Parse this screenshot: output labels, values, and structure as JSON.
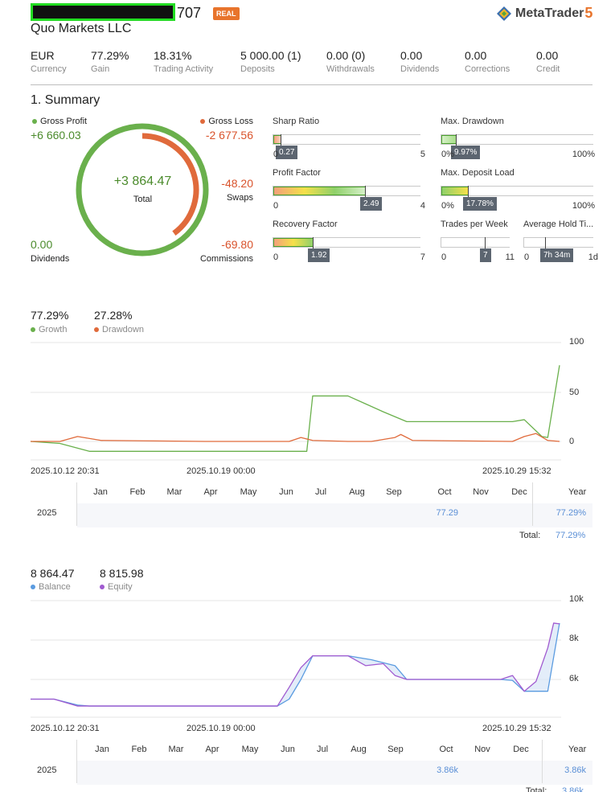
{
  "header": {
    "account_suffix": "707",
    "badge": "REAL",
    "broker": "Quo Markets LLC",
    "logo_text": "MetaTrader",
    "logo_number": "5"
  },
  "stats": [
    {
      "value": "EUR",
      "label": "Currency"
    },
    {
      "value": "77.29%",
      "label": "Gain"
    },
    {
      "value": "18.31%",
      "label": "Trading Activity"
    },
    {
      "value": "5 000.00 (1)",
      "label": "Deposits"
    },
    {
      "value": "0.00 (0)",
      "label": "Withdrawals"
    },
    {
      "value": "0.00",
      "label": "Dividends"
    },
    {
      "value": "0.00",
      "label": "Corrections"
    },
    {
      "value": "0.00",
      "label": "Credit"
    }
  ],
  "summary": {
    "title": "1. Summary",
    "gross_profit_label": "Gross Profit",
    "gross_profit": "+6 660.03",
    "gross_loss_label": "Gross Loss",
    "gross_loss": "-2 677.56",
    "total_value": "+3 864.47",
    "total_label": "Total",
    "swaps_value": "-48.20",
    "swaps_label": "Swaps",
    "dividends_value": "0.00",
    "dividends_label": "Dividends",
    "commissions_value": "-69.80",
    "commissions_label": "Commissions",
    "loss_share": 0.4
  },
  "metrics": {
    "sharp": {
      "label": "Sharp Ratio",
      "min": "0",
      "max": "5",
      "value": "0.27",
      "fraction": 0.054
    },
    "profit_factor": {
      "label": "Profit Factor",
      "min": "0",
      "max": "4",
      "value": "2.49",
      "fraction": 0.6225
    },
    "recovery": {
      "label": "Recovery Factor",
      "min": "0",
      "max": "7",
      "value": "1.92",
      "fraction": 0.274
    },
    "drawdown": {
      "label": "Max. Drawdown",
      "min": "0%",
      "max": "100%",
      "value": "9.97%",
      "fraction": 0.0997
    },
    "deposit_load": {
      "label": "Max. Deposit Load",
      "min": "0%",
      "max": "100%",
      "value": "17.78%",
      "fraction": 0.1778
    },
    "trades_week": {
      "label": "Trades per Week",
      "min": "0",
      "max": "11",
      "value": "7",
      "fraction": 0.636
    },
    "hold_time": {
      "label": "Average Hold Ti...",
      "min": "0",
      "max": "1d",
      "value": "7h 34m",
      "fraction": 0.315
    }
  },
  "growth_chart": {
    "growth_value": "77.29%",
    "growth_label": "Growth",
    "drawdown_value": "27.28%",
    "drawdown_label": "Drawdown",
    "y_ticks": [
      "100",
      "50",
      "0"
    ],
    "x_labels": [
      "2025.10.12 20:31",
      "2025.10.19 00:00",
      "2025.10.29 15:32"
    ],
    "months": [
      "Jan",
      "Feb",
      "Mar",
      "Apr",
      "May",
      "Jun",
      "Jul",
      "Aug",
      "Sep",
      "Oct",
      "Nov",
      "Dec"
    ],
    "year_header": "Year",
    "row_year": "2025",
    "oct_value": "77.29",
    "year_value": "77.29%",
    "total_label": "Total:",
    "total_value": "77.29%",
    "colors": {
      "growth": "#6ab04c",
      "drawdown": "#e06a3b"
    }
  },
  "balance_chart": {
    "balance_value": "8 864.47",
    "balance_label": "Balance",
    "equity_value": "8 815.98",
    "equity_label": "Equity",
    "y_ticks": [
      "10k",
      "8k",
      "6k"
    ],
    "x_labels": [
      "2025.10.12 20:31",
      "2025.10.19 00:00",
      "2025.10.29 15:32"
    ],
    "months": [
      "Jan",
      "Feb",
      "Mar",
      "Apr",
      "May",
      "Jun",
      "Jul",
      "Aug",
      "Sep",
      "Oct",
      "Nov",
      "Dec"
    ],
    "year_header": "Year",
    "row_year": "2025",
    "oct_value": "3.86k",
    "year_value": "3.86k",
    "total_label": "Total:",
    "total_value": "3.86k",
    "colors": {
      "balance": "#5a9be0",
      "equity": "#a05ad0"
    }
  },
  "chart_data": [
    {
      "type": "line",
      "series": [
        {
          "name": "Growth",
          "x": [
            0,
            5,
            10,
            30,
            47,
            48,
            54,
            57,
            60,
            64,
            66,
            82,
            84,
            87,
            88,
            90
          ],
          "y": [
            0,
            -2,
            -10,
            -10,
            -10,
            46,
            46,
            38,
            30,
            20,
            20,
            20,
            22,
            5,
            4,
            77
          ]
        },
        {
          "name": "Drawdown",
          "x": [
            0,
            5,
            8,
            12,
            30,
            44,
            46,
            48,
            54,
            58,
            62,
            63,
            65,
            82,
            84,
            86,
            88,
            90
          ],
          "y": [
            0,
            0,
            5,
            1,
            0,
            0,
            4,
            1,
            0,
            0,
            4,
            7,
            1,
            0,
            5,
            8,
            1,
            0
          ]
        }
      ],
      "ylim": [
        -20,
        100
      ]
    },
    {
      "type": "area",
      "series": [
        {
          "name": "Balance",
          "x": [
            0,
            4,
            8,
            10,
            42,
            44,
            46,
            48,
            54,
            58,
            62,
            64,
            80,
            82,
            84,
            88,
            90
          ],
          "y": [
            5000,
            5000,
            4700,
            4650,
            4650,
            5000,
            6000,
            7200,
            7200,
            7000,
            6700,
            6000,
            6000,
            5950,
            5400,
            5400,
            8860
          ]
        },
        {
          "name": "Equity",
          "x": [
            0,
            4,
            8,
            10,
            42,
            44,
            46,
            48,
            54,
            57,
            60,
            62,
            64,
            80,
            82,
            84,
            86,
            88,
            89,
            90
          ],
          "y": [
            5000,
            5000,
            4650,
            4650,
            4650,
            5600,
            6600,
            7200,
            7200,
            6700,
            6800,
            6200,
            6000,
            6000,
            6200,
            5400,
            5900,
            7600,
            8860,
            8820
          ]
        }
      ],
      "ylim": [
        4000,
        10000
      ]
    }
  ]
}
